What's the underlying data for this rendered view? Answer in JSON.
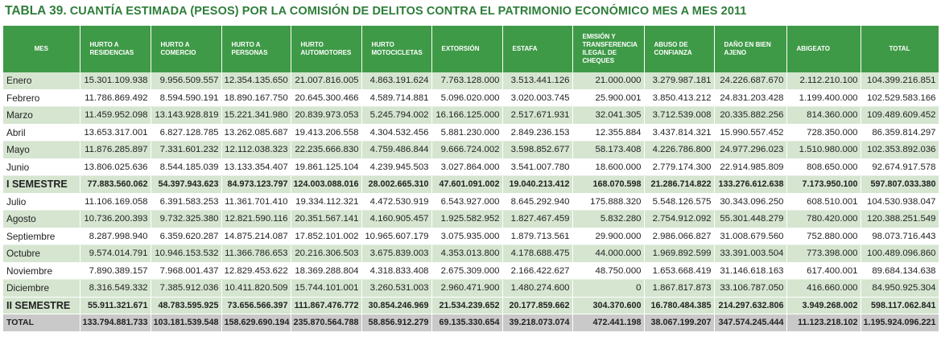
{
  "title": {
    "number": "TABLA 39.",
    "text": "CUANTÍA ESTIMADA (PESOS) POR LA COMISIÓN DE DELITOS  CONTRA EL PATRIMONIO ECONÓMICO MES A MES 2011"
  },
  "headers": [
    "MES",
    "HURTO A RESIDENCIAS",
    "HURTO A COMERCIO",
    "HURTO A PERSONAS",
    "HURTO AUTOMOTORES",
    "HURTO MOTOCICLETAS",
    "EXTORSIÓN",
    "ESTAFA",
    "EMISIÓN Y TRANSFERENCIA ILEGAL DE CHEQUES",
    "ABUSO DE CONFIANZA",
    "DAÑO EN BIEN AJENO",
    "ABIGEATO",
    "TOTAL"
  ],
  "rows": [
    {
      "type": "odd",
      "cells": [
        "Enero",
        "15.301.109.938",
        "9.956.509.557",
        "12.354.135.650",
        "21.007.816.005",
        "4.863.191.624",
        "7.763.128.000",
        "3.513.441.126",
        "21.000.000",
        "3.279.987.181",
        "24.226.687.670",
        "2.112.210.100",
        "104.399.216.851"
      ]
    },
    {
      "type": "even",
      "cells": [
        "Febrero",
        "11.786.869.492",
        "8.594.590.191",
        "18.890.167.750",
        "20.645.300.466",
        "4.589.714.881",
        "5.096.020.000",
        "3.020.003.745",
        "25.900.001",
        "3.850.413.212",
        "24.831.203.428",
        "1.199.400.000",
        "102.529.583.166"
      ]
    },
    {
      "type": "odd",
      "cells": [
        "Marzo",
        "11.459.952.098",
        "13.143.928.819",
        "15.221.341.980",
        "20.839.973.053",
        "5.245.794.002",
        "16.166.125.000",
        "2.517.671.931",
        "32.041.305",
        "3.712.539.008",
        "20.335.882.256",
        "814.360.000",
        "109.489.609.452"
      ]
    },
    {
      "type": "even",
      "cells": [
        "Abril",
        "13.653.317.001",
        "6.827.128.785",
        "13.262.085.687",
        "19.413.206.558",
        "4.304.532.456",
        "5.881.230.000",
        "2.849.236.153",
        "12.355.884",
        "3.437.814.321",
        "15.990.557.452",
        "728.350.000",
        "86.359.814.297"
      ]
    },
    {
      "type": "odd",
      "cells": [
        "Mayo",
        "11.876.285.897",
        "7.331.601.232",
        "12.112.038.323",
        "22.235.666.830",
        "4.759.486.844",
        "9.666.724.002",
        "3.598.852.677",
        "58.173.408",
        "4.226.786.800",
        "24.977.296.023",
        "1.510.980.000",
        "102.353.892.036"
      ]
    },
    {
      "type": "even",
      "cells": [
        "Junio",
        "13.806.025.636",
        "8.544.185.039",
        "13.133.354.407",
        "19.861.125.104",
        "4.239.945.503",
        "3.027.864.000",
        "3.541.007.780",
        "18.600.000",
        "2.779.174.300",
        "22.914.985.809",
        "808.650.000",
        "92.674.917.578"
      ]
    },
    {
      "type": "sem",
      "cells": [
        "I SEMESTRE",
        "77.883.560.062",
        "54.397.943.623",
        "84.973.123.797",
        "124.003.088.016",
        "28.002.665.310",
        "47.601.091.002",
        "19.040.213.412",
        "168.070.598",
        "21.286.714.822",
        "133.276.612.638",
        "7.173.950.100",
        "597.807.033.380"
      ]
    },
    {
      "type": "even",
      "cells": [
        "Julio",
        "11.106.169.058",
        "6.391.583.253",
        "11.361.701.410",
        "19.334.112.321",
        "4.472.530.919",
        "6.543.927.000",
        "8.645.292.940",
        "175.888.320",
        "5.548.126.575",
        "30.343.096.250",
        "608.510.001",
        "104.530.938.047"
      ]
    },
    {
      "type": "odd",
      "cells": [
        "Agosto",
        "10.736.200.393",
        "9.732.325.380",
        "12.821.590.116",
        "20.351.567.141",
        "4.160.905.457",
        "1.925.582.952",
        "1.827.467.459",
        "5.832.280",
        "2.754.912.092",
        "55.301.448.279",
        "780.420.000",
        "120.388.251.549"
      ]
    },
    {
      "type": "even",
      "cells": [
        "Septiembre",
        "8.287.998.940",
        "6.359.620.287",
        "14.875.214.087",
        "17.852.101.002",
        "10.965.607.179",
        "3.075.935.000",
        "1.879.713.561",
        "29.900.000",
        "2.986.066.827",
        "31.008.679.560",
        "752.880.000",
        "98.073.716.443"
      ]
    },
    {
      "type": "odd",
      "cells": [
        "Octubre",
        "9.574.014.791",
        "10.946.153.532",
        "11.366.786.653",
        "20.216.306.503",
        "3.675.839.003",
        "4.353.013.800",
        "4.178.688.475",
        "44.000.000",
        "1.969.892.599",
        "33.391.003.504",
        "773.398.000",
        "100.489.096.860"
      ]
    },
    {
      "type": "even",
      "cells": [
        "Noviembre",
        "7.890.389.157",
        "7.968.001.437",
        "12.829.453.622",
        "18.369.288.804",
        "4.318.833.408",
        "2.675.309.000",
        "2.166.422.627",
        "48.750.000",
        "1.653.668.419",
        "31.146.618.163",
        "617.400.001",
        "89.684.134.638"
      ]
    },
    {
      "type": "odd",
      "cells": [
        "Diciembre",
        "8.316.549.332",
        "7.385.912.036",
        "10.411.820.509",
        "15.744.101.001",
        "3.260.531.003",
        "2.960.471.900",
        "1.480.274.600",
        "0",
        "1.867.817.873",
        "33.106.787.050",
        "416.660.000",
        "84.950.925.304"
      ]
    },
    {
      "type": "sem",
      "cells": [
        "II SEMESTRE",
        "55.911.321.671",
        "48.783.595.925",
        "73.656.566.397",
        "111.867.476.772",
        "30.854.246.969",
        "21.534.239.652",
        "20.177.859.662",
        "304.370.600",
        "16.780.484.385",
        "214.297.632.806",
        "3.949.268.002",
        "598.117.062.841"
      ]
    },
    {
      "type": "total",
      "cells": [
        "TOTAL",
        "133.794.881.733",
        "103.181.539.548",
        "158.629.690.194",
        "235.870.564.788",
        "58.856.912.279",
        "69.135.330.654",
        "39.218.073.074",
        "472.441.198",
        "38.067.199.207",
        "347.574.245.444",
        "11.123.218.102",
        "1.195.924.096.221"
      ]
    }
  ]
}
